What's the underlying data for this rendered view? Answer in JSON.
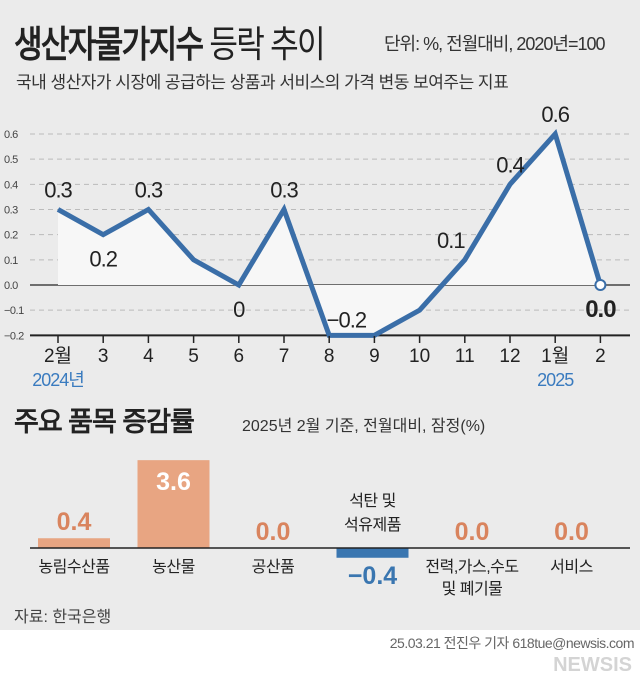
{
  "header": {
    "title_bold": "생산자물가지수",
    "title_light": "등락 추이",
    "unit": "단위: %, 전월대비, 2020년=100",
    "subtitle": "국내 생산자가 시장에 공급하는 상품과 서비스의 가격 변동 보여주는 지표"
  },
  "chart_data": [
    {
      "type": "line",
      "title": "생산자물가지수 등락 추이",
      "categories": [
        "2월",
        "3",
        "4",
        "5",
        "6",
        "7",
        "8",
        "9",
        "10",
        "11",
        "12",
        "1월",
        "2"
      ],
      "values": [
        0.3,
        0.2,
        0.3,
        0.1,
        0,
        0.3,
        -0.2,
        -0.2,
        -0.1,
        0.1,
        0.4,
        0.6,
        0.0
      ],
      "data_labels": [
        "0.3",
        "0.2",
        "0.3",
        "",
        "0",
        "0.3",
        "",
        "−0.2",
        "",
        "0.1",
        "0.4",
        "0.6",
        "0.0"
      ],
      "year_labels": [
        {
          "index": 0,
          "text": "2024년"
        },
        {
          "index": 11,
          "text": "2025"
        }
      ],
      "yticks": [
        "0.6",
        "0.5",
        "0.4",
        "0.3",
        "0.2",
        "0.1",
        "0.0",
        "−0.1",
        "−0.2"
      ],
      "ylim": [
        -0.2,
        0.6
      ],
      "grid": true,
      "color": "#3a6ea8"
    },
    {
      "type": "bar",
      "title": "주요 품목 증감률",
      "subtitle": "2025년 2월 기준, 전월대비, 잠정(%)",
      "categories": [
        "농림수산품",
        "농산물",
        "공산품",
        "석탄 및 석유제품",
        "전력,가스,수도 및 폐기물",
        "서비스"
      ],
      "values": [
        0.4,
        3.6,
        0.0,
        -0.4,
        0.0,
        0.0
      ],
      "labels": [
        "0.4",
        "3.6",
        "0.0",
        "−0.4",
        "0.0",
        "0.0"
      ],
      "positive_color": "#e8a582",
      "negative_color": "#3a76b0"
    }
  ],
  "footer": {
    "source": "자료: 한국은행",
    "credit": "25.03.21 전진우 기자 618tue@newsis.com",
    "watermark": "NEWSIS"
  }
}
